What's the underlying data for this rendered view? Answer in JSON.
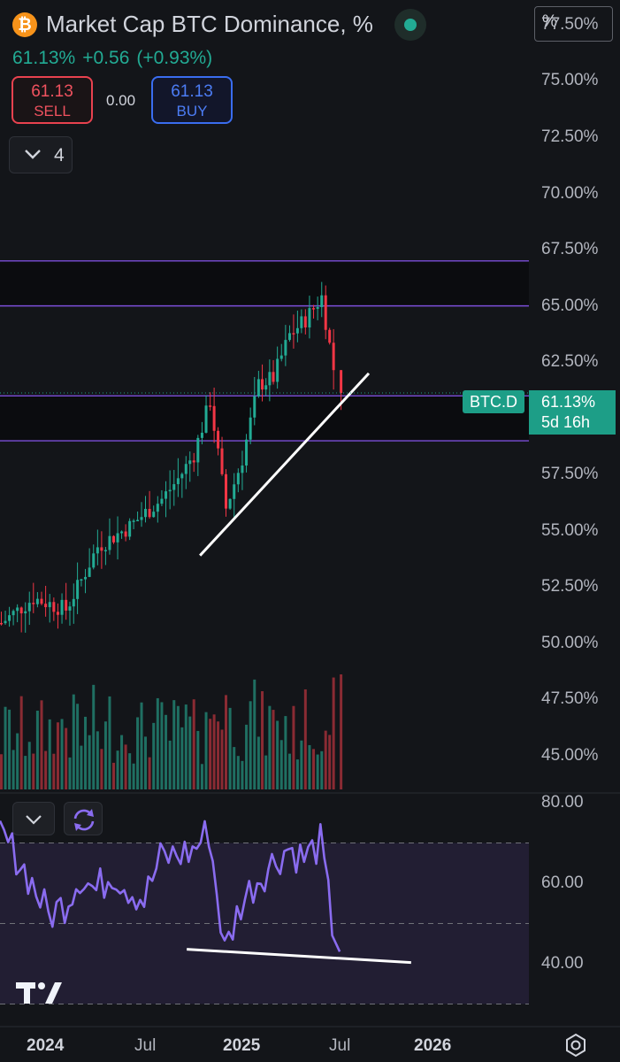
{
  "header": {
    "title": "Market Cap BTC Dominance, %",
    "price": "61.13%",
    "change": "+0.56",
    "change_pct": "(+0.93%)",
    "sell_price": "61.13",
    "sell_label": "SELL",
    "spread": "0.00",
    "buy_price": "61.13",
    "buy_label": "BUY",
    "indicators_count": "4",
    "scale_button": "%"
  },
  "price_tag": {
    "symbol": "BTC.D",
    "value": "61.13%",
    "countdown": "5d 16h"
  },
  "colors": {
    "up": "#22ab94",
    "down": "#f23645",
    "rsi": "#8a6cf0",
    "zone_line": "#7b4ed8",
    "background": "#131519"
  },
  "chart_data": [
    {
      "type": "candlestick",
      "title": "Market Cap BTC Dominance, %",
      "interval": "weekly",
      "y_ticks": [
        "77.50%",
        "75.00%",
        "72.50%",
        "70.00%",
        "67.50%",
        "65.00%",
        "62.50%",
        "60.00%",
        "57.50%",
        "55.00%",
        "52.50%",
        "50.00%",
        "47.50%",
        "45.00%"
      ],
      "x_ticks": [
        "2024",
        "Jul",
        "2025",
        "Jul",
        "2026"
      ],
      "ylim": [
        43.5,
        79
      ],
      "last_value": 61.13,
      "zones": [
        {
          "from": 65.0,
          "to": 67.0
        },
        {
          "from": 59.0,
          "to": 61.0
        }
      ],
      "trendline": {
        "from": [
          "2024-11",
          53.9
        ],
        "to": [
          "2025-09",
          62.0
        ]
      },
      "close_series": [
        {
          "date": "2023-10",
          "value": 50.9
        },
        {
          "date": "2023-12",
          "value": 52.0
        },
        {
          "date": "2024-02",
          "value": 51.5
        },
        {
          "date": "2024-03",
          "value": 52.8
        },
        {
          "date": "2024-04",
          "value": 54.3
        },
        {
          "date": "2024-06",
          "value": 55.2
        },
        {
          "date": "2024-07",
          "value": 55.8
        },
        {
          "date": "2024-08",
          "value": 56.4
        },
        {
          "date": "2024-09",
          "value": 57.3
        },
        {
          "date": "2024-10",
          "value": 58.4
        },
        {
          "date": "2024-11",
          "value": 60.8
        },
        {
          "date": "2024-12",
          "value": 56.0
        },
        {
          "date": "2025-01",
          "value": 58.2
        },
        {
          "date": "2025-02",
          "value": 61.5
        },
        {
          "date": "2025-03",
          "value": 61.8
        },
        {
          "date": "2025-04",
          "value": 63.7
        },
        {
          "date": "2025-05",
          "value": 64.4
        },
        {
          "date": "2025-06",
          "value": 65.4
        },
        {
          "date": "2025-07",
          "value": 61.13
        }
      ]
    },
    {
      "type": "line",
      "indicator": "RSI",
      "y_ticks": [
        "80.00",
        "60.00",
        "40.00"
      ],
      "ylim": [
        27,
        82
      ],
      "bands": [
        70,
        50,
        30
      ],
      "trendline": {
        "from": [
          "2024-11",
          43.6
        ],
        "to": [
          "2025-10",
          40.3
        ]
      },
      "series": [
        {
          "date": "2023-10",
          "value": 72
        },
        {
          "date": "2023-11",
          "value": 67
        },
        {
          "date": "2023-12",
          "value": 60
        },
        {
          "date": "2024-01",
          "value": 52
        },
        {
          "date": "2024-02",
          "value": 55
        },
        {
          "date": "2024-03",
          "value": 62
        },
        {
          "date": "2024-04",
          "value": 58
        },
        {
          "date": "2024-05",
          "value": 63
        },
        {
          "date": "2024-06",
          "value": 59
        },
        {
          "date": "2024-07",
          "value": 56
        },
        {
          "date": "2024-08",
          "value": 66
        },
        {
          "date": "2024-09",
          "value": 67
        },
        {
          "date": "2024-10",
          "value": 68
        },
        {
          "date": "2024-11",
          "value": 73
        },
        {
          "date": "2024-12",
          "value": 43
        },
        {
          "date": "2025-01",
          "value": 55
        },
        {
          "date": "2025-02",
          "value": 61
        },
        {
          "date": "2025-03",
          "value": 65
        },
        {
          "date": "2025-04",
          "value": 69
        },
        {
          "date": "2025-05",
          "value": 66
        },
        {
          "date": "2025-06",
          "value": 70
        },
        {
          "date": "2025-07",
          "value": 43
        }
      ]
    }
  ]
}
